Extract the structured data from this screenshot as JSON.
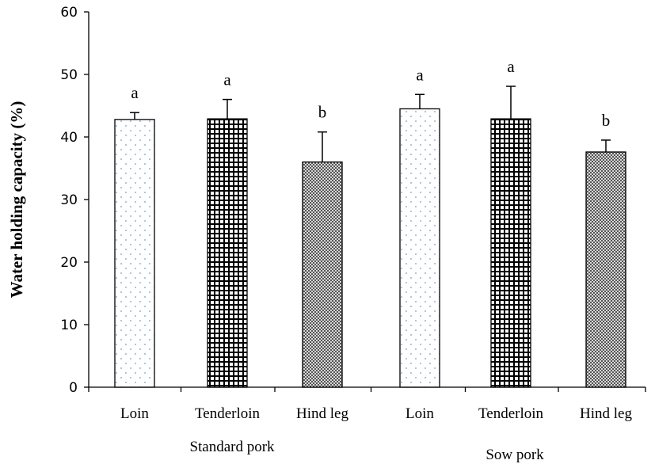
{
  "chart_data": {
    "type": "bar",
    "title": "",
    "xlabel": "",
    "ylabel": "Water holding capacity (%)",
    "ylim": [
      0,
      60
    ],
    "yticks": [
      "0",
      "10",
      "20",
      "30",
      "40",
      "50",
      "60"
    ],
    "grid": false,
    "categories": [
      "Loin",
      "Tenderloin",
      "Hind leg",
      "Loin",
      "Tenderloin",
      "Hind leg"
    ],
    "groups": [
      {
        "label": "Standard pork",
        "members": [
          0,
          1,
          2
        ]
      },
      {
        "label": "Sow pork",
        "members": [
          3,
          4,
          5
        ]
      }
    ],
    "values": [
      42.8,
      42.9,
      36.0,
      44.5,
      42.9,
      37.6
    ],
    "errors": [
      1.1,
      3.1,
      4.8,
      2.3,
      5.2,
      1.9
    ],
    "significance": [
      "a",
      "a",
      "b",
      "a",
      "a",
      "b"
    ],
    "patterns": [
      "dots",
      "grid",
      "crosshatch",
      "dots",
      "grid",
      "crosshatch"
    ],
    "colors": {
      "axis": "#000000",
      "bar_fill": "#ffffff",
      "bar_stroke": "#000000",
      "dot": "#7a9cc6"
    }
  }
}
